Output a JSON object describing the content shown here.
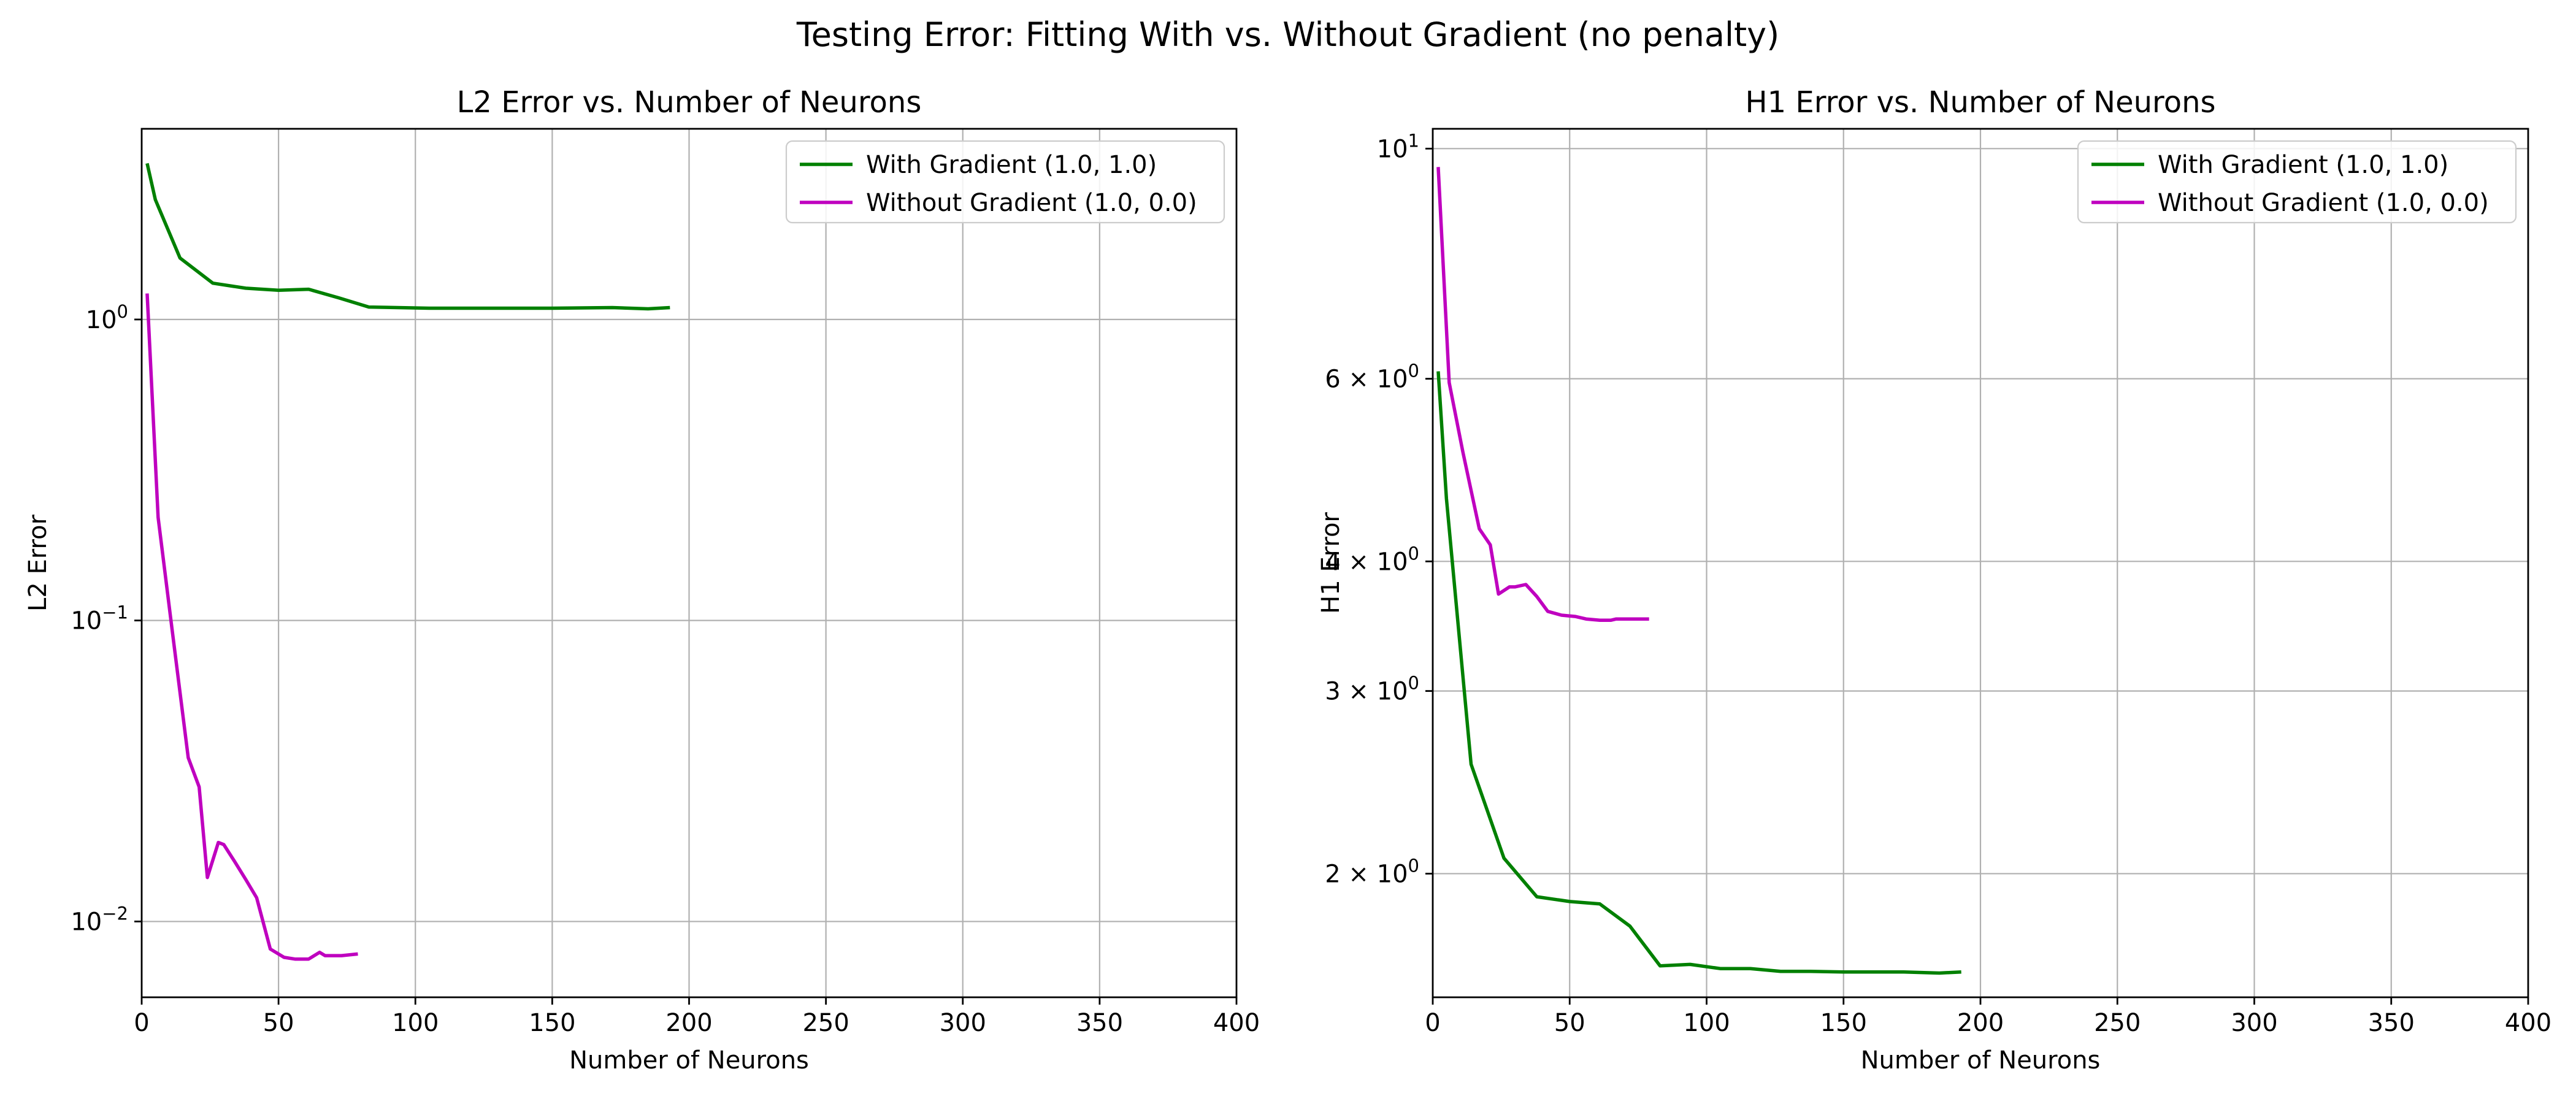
{
  "suptitle": "Testing Error: Fitting With vs. Without Gradient (no penalty)",
  "colors": {
    "with_gradient": "#008000",
    "without_gradient": "#bf00bf",
    "grid": "#b0b0b0",
    "axes": "#000000"
  },
  "chart_data": [
    {
      "type": "line",
      "title": "L2 Error vs. Number of Neurons",
      "xlabel": "Number of Neurons",
      "ylabel": "L2 Error",
      "xlim": [
        0,
        400
      ],
      "ylim": [
        0.0056,
        4.3
      ],
      "yscale": "log",
      "grid": true,
      "legend_position": "top-right",
      "x_ticks": [
        0,
        50,
        100,
        150,
        200,
        250,
        300,
        350,
        400
      ],
      "x_tick_labels": [
        "0",
        "50",
        "100",
        "150",
        "200",
        "250",
        "300",
        "350",
        "400"
      ],
      "y_ticks": [
        {
          "value": 1,
          "base": "10",
          "exp": "0"
        },
        {
          "value": 0.1,
          "base": "10",
          "exp": "−1"
        },
        {
          "value": 0.01,
          "base": "10",
          "exp": "−2"
        }
      ],
      "series": [
        {
          "name": "With Gradient (1.0, 1.0)",
          "color": "#008000",
          "x": [
            2,
            5,
            14,
            26,
            38,
            50,
            61,
            72,
            83,
            105,
            127,
            150,
            172,
            185,
            193
          ],
          "y": [
            3.3,
            2.5,
            1.6,
            1.32,
            1.27,
            1.25,
            1.26,
            1.18,
            1.1,
            1.09,
            1.09,
            1.09,
            1.095,
            1.085,
            1.095
          ]
        },
        {
          "name": "Without Gradient (1.0, 0.0)",
          "color": "#bf00bf",
          "x": [
            2,
            6,
            11,
            17,
            21,
            24,
            28,
            30,
            34,
            38,
            42,
            47,
            52,
            56,
            61,
            65,
            67,
            73,
            79
          ],
          "y": [
            1.22,
            0.22,
            0.095,
            0.035,
            0.028,
            0.014,
            0.0183,
            0.018,
            0.0158,
            0.0138,
            0.012,
            0.0081,
            0.0076,
            0.0075,
            0.0075,
            0.0079,
            0.0077,
            0.0077,
            0.0078
          ]
        }
      ]
    },
    {
      "type": "line",
      "title": "H1 Error vs. Number of Neurons",
      "xlabel": "Number of Neurons",
      "ylabel": "H1 Error",
      "xlim": [
        0,
        400
      ],
      "ylim": [
        1.52,
        10.45
      ],
      "yscale": "log",
      "grid": true,
      "legend_position": "top-right",
      "x_ticks": [
        0,
        50,
        100,
        150,
        200,
        250,
        300,
        350,
        400
      ],
      "x_tick_labels": [
        "0",
        "50",
        "100",
        "150",
        "200",
        "250",
        "300",
        "350",
        "400"
      ],
      "y_ticks": [
        {
          "value": 10,
          "base": "10",
          "exp": "1"
        },
        {
          "value": 6,
          "base": "6 × 10",
          "exp": "0"
        },
        {
          "value": 4,
          "base": "4 × 10",
          "exp": "0"
        },
        {
          "value": 3,
          "base": "3 × 10",
          "exp": "0"
        },
        {
          "value": 2,
          "base": "2 × 10",
          "exp": "0"
        }
      ],
      "series": [
        {
          "name": "With Gradient (1.0, 1.0)",
          "color": "#008000",
          "x": [
            2,
            5,
            14,
            26,
            38,
            50,
            61,
            72,
            83,
            94,
            105,
            116,
            127,
            138,
            150,
            161,
            172,
            185,
            193
          ],
          "y": [
            6.1,
            4.6,
            2.55,
            2.07,
            1.9,
            1.88,
            1.87,
            1.78,
            1.63,
            1.635,
            1.62,
            1.62,
            1.61,
            1.61,
            1.608,
            1.608,
            1.608,
            1.604,
            1.608
          ]
        },
        {
          "name": "Without Gradient (1.0, 0.0)",
          "color": "#bf00bf",
          "x": [
            2,
            6,
            11,
            17,
            21,
            24,
            28,
            30,
            34,
            38,
            42,
            47,
            52,
            56,
            61,
            65,
            67,
            73,
            79
          ],
          "y": [
            9.6,
            5.95,
            5.1,
            4.3,
            4.15,
            3.72,
            3.78,
            3.78,
            3.8,
            3.7,
            3.58,
            3.55,
            3.54,
            3.52,
            3.51,
            3.51,
            3.52,
            3.52,
            3.52
          ]
        }
      ]
    }
  ]
}
